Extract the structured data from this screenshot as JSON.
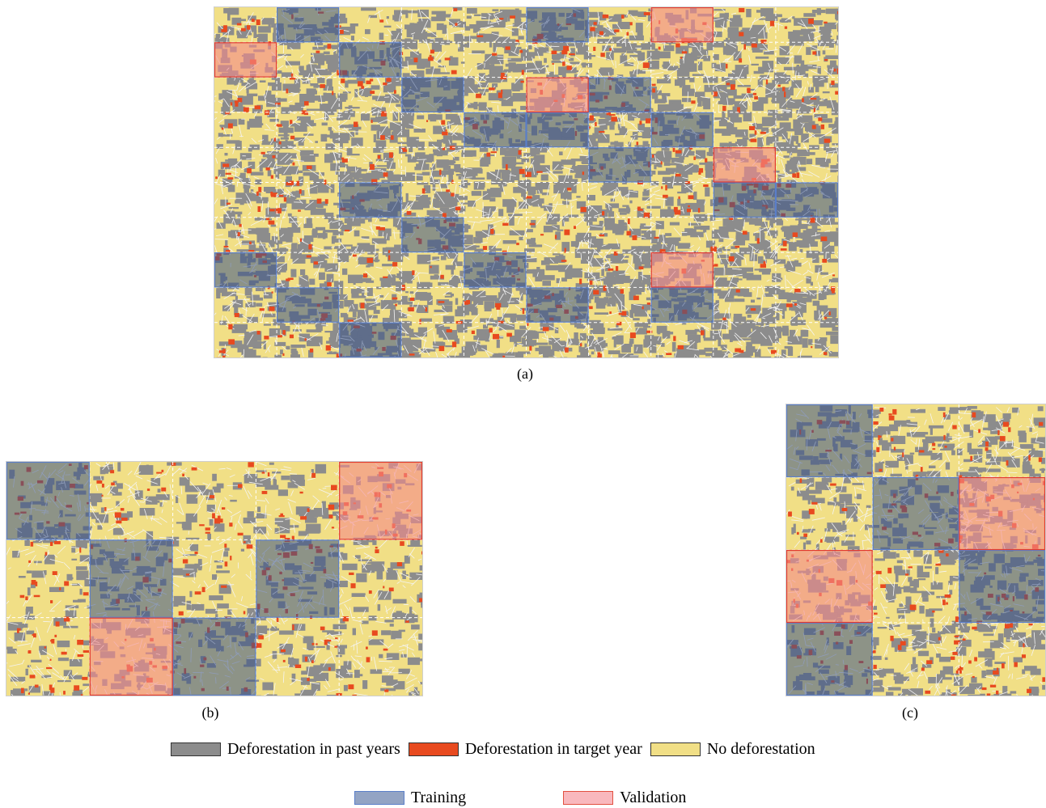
{
  "panels": [
    {
      "id": "a",
      "caption": "(a)",
      "cols": 10,
      "rows": 10,
      "training": [
        [
          1,
          0
        ],
        [
          5,
          0
        ],
        [
          2,
          1
        ],
        [
          3,
          2
        ],
        [
          6,
          2
        ],
        [
          4,
          3
        ],
        [
          5,
          3
        ],
        [
          7,
          3
        ],
        [
          6,
          4
        ],
        [
          2,
          5
        ],
        [
          8,
          5
        ],
        [
          9,
          5
        ],
        [
          3,
          6
        ],
        [
          0,
          7
        ],
        [
          4,
          7
        ],
        [
          1,
          8
        ],
        [
          5,
          8
        ],
        [
          7,
          8
        ],
        [
          2,
          9
        ]
      ],
      "validation": [
        [
          7,
          0
        ],
        [
          0,
          1
        ],
        [
          5,
          2
        ],
        [
          8,
          4
        ],
        [
          7,
          7
        ]
      ]
    },
    {
      "id": "b",
      "caption": "(b)",
      "cols": 5,
      "rows": 3,
      "training": [
        [
          0,
          0
        ],
        [
          1,
          1
        ],
        [
          3,
          1
        ],
        [
          2,
          2
        ]
      ],
      "validation": [
        [
          4,
          0
        ],
        [
          1,
          2
        ]
      ]
    },
    {
      "id": "c",
      "caption": "(c)",
      "cols": 3,
      "rows": 4,
      "training": [
        [
          0,
          0
        ],
        [
          1,
          1
        ],
        [
          2,
          2
        ],
        [
          0,
          3
        ]
      ],
      "validation": [
        [
          2,
          1
        ],
        [
          0,
          2
        ]
      ]
    }
  ],
  "legend": {
    "past": {
      "label": "Deforestation in past years",
      "color": "#8c8c8c"
    },
    "target": {
      "label": "Deforestation in target year",
      "color": "#e84a1f"
    },
    "none": {
      "label": "No deforestation",
      "color": "#f1df86"
    },
    "training": {
      "label": "Training",
      "color": "#93a4c4"
    },
    "validation": {
      "label": "Validation",
      "color": "#f9b8bd"
    }
  }
}
